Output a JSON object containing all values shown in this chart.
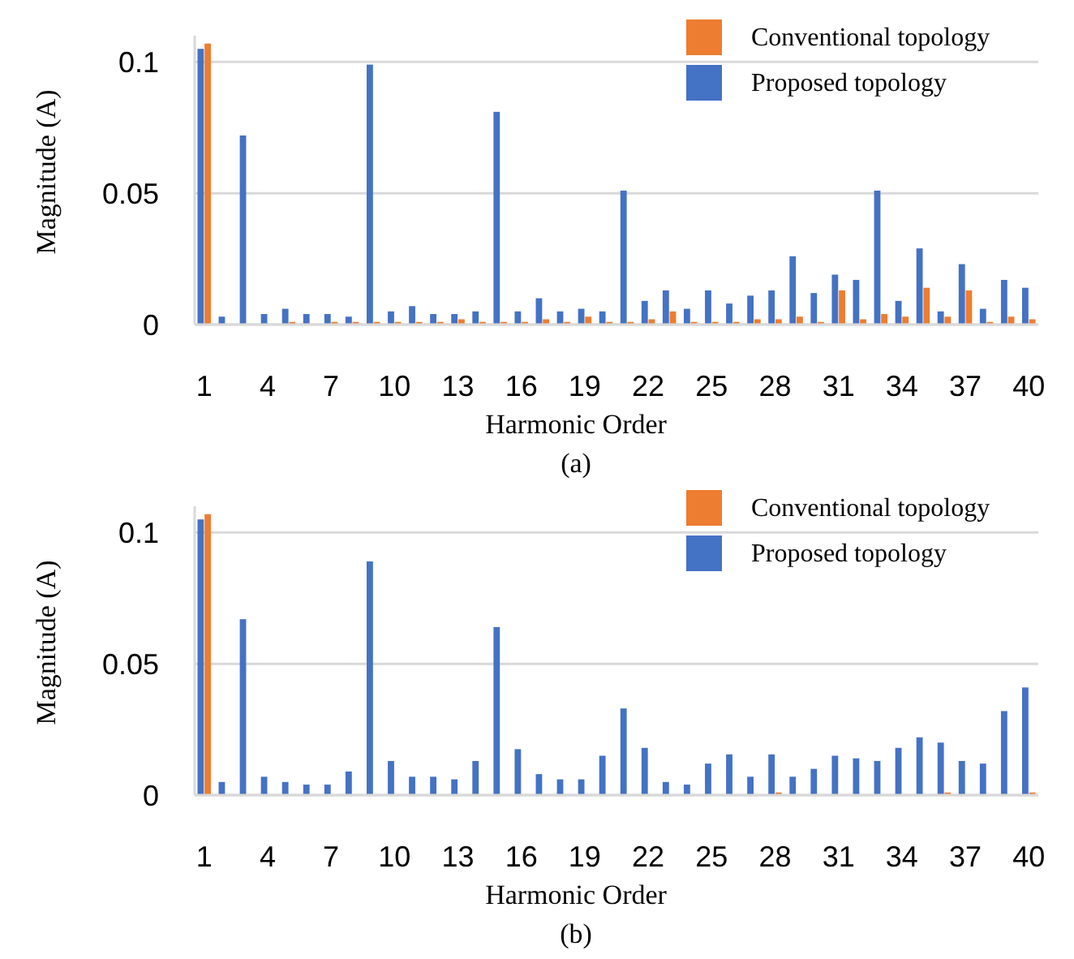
{
  "chart_data": [
    {
      "type": "bar",
      "categories": [
        "1",
        null,
        null,
        "4",
        null,
        null,
        "7",
        null,
        null,
        "10",
        null,
        null,
        "13",
        null,
        null,
        "16",
        null,
        null,
        "19",
        null,
        null,
        "22",
        null,
        null,
        "25",
        null,
        null,
        "28",
        null,
        null,
        "31",
        null,
        null,
        "34",
        null,
        null,
        "37",
        null,
        null,
        "40"
      ],
      "series": [
        {
          "name": "Proposed topology",
          "color": "#4472c4",
          "values": [
            0.105,
            0.003,
            0.072,
            0.004,
            0.006,
            0.004,
            0.004,
            0.003,
            0.099,
            0.005,
            0.007,
            0.004,
            0.004,
            0.005,
            0.081,
            0.005,
            0.01,
            0.005,
            0.006,
            0.005,
            0.051,
            0.009,
            0.013,
            0.006,
            0.013,
            0.008,
            0.011,
            0.013,
            0.026,
            0.012,
            0.019,
            0.017,
            0.051,
            0.009,
            0.029,
            0.005,
            0.023,
            0.006,
            0.017,
            0.014
          ]
        },
        {
          "name": "Conventional topology",
          "color": "#ed7d31",
          "values": [
            0.107,
            0,
            0,
            0,
            0.001,
            0,
            0.001,
            0.001,
            0.001,
            0.001,
            0.001,
            0.001,
            0.002,
            0.001,
            0.001,
            0.001,
            0.002,
            0.001,
            0.003,
            0.001,
            0.001,
            0.002,
            0.005,
            0.001,
            0.001,
            0.001,
            0.002,
            0.002,
            0.003,
            0.001,
            0.013,
            0.002,
            0.004,
            0.003,
            0.014,
            0.003,
            0.013,
            0.001,
            0.003,
            0.002
          ]
        }
      ],
      "xlabel": "Harmonic Order",
      "ylabel": "Magnitude (A)",
      "ylim": [
        0,
        0.11
      ],
      "yticks": [
        0,
        0.05,
        0.1
      ],
      "grid": "y",
      "legend": "top right",
      "annotations": [
        "(a)"
      ]
    },
    {
      "type": "bar",
      "categories": [
        "1",
        null,
        null,
        "4",
        null,
        null,
        "7",
        null,
        null,
        "10",
        null,
        null,
        "13",
        null,
        null,
        "16",
        null,
        null,
        "19",
        null,
        null,
        "22",
        null,
        null,
        "25",
        null,
        null,
        "28",
        null,
        null,
        "31",
        null,
        null,
        "34",
        null,
        null,
        "37",
        null,
        null,
        "40"
      ],
      "series": [
        {
          "name": "Proposed topology",
          "color": "#4472c4",
          "values": [
            0.105,
            0.005,
            0.067,
            0.007,
            0.005,
            0.004,
            0.004,
            0.009,
            0.089,
            0.013,
            0.007,
            0.007,
            0.006,
            0.013,
            0.064,
            0.0175,
            0.008,
            0.006,
            0.006,
            0.015,
            0.033,
            0.018,
            0.005,
            0.004,
            0.012,
            0.0155,
            0.007,
            0.0155,
            0.007,
            0.01,
            0.015,
            0.014,
            0.013,
            0.018,
            0.022,
            0.02,
            0.013,
            0.012,
            0.032,
            0.041
          ]
        },
        {
          "name": "Conventional topology",
          "color": "#ed7d31",
          "values": [
            0.107,
            0,
            0,
            0,
            0,
            0,
            0,
            0,
            0,
            0,
            0,
            0,
            0,
            0,
            0,
            0,
            0,
            0,
            0,
            0,
            0,
            0,
            0,
            0,
            0,
            0,
            0,
            0.001,
            0,
            0,
            0,
            0,
            0,
            0,
            0,
            0.001,
            0,
            0,
            0,
            0.001
          ]
        }
      ],
      "xlabel": "Harmonic Order",
      "ylabel": "Magnitude (A)",
      "ylim": [
        0,
        0.11
      ],
      "yticks": [
        0,
        0.05,
        0.1
      ],
      "grid": "y",
      "legend": "top right",
      "annotations": [
        "(b)"
      ]
    }
  ]
}
